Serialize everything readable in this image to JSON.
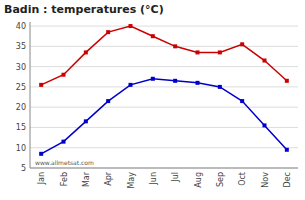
{
  "chart_data": {
    "type": "line",
    "title": "Badin : temperatures (°C)",
    "categories": [
      "Jan",
      "Feb",
      "Mar",
      "Apr",
      "May",
      "Jun",
      "Jul",
      "Aug",
      "Sep",
      "Oct",
      "Nov",
      "Dec"
    ],
    "series": [
      {
        "color": "#cc0000",
        "marker": "square",
        "line_style": "solid",
        "values": [
          25.5,
          28.0,
          33.5,
          38.5,
          40.0,
          37.5,
          35.0,
          33.5,
          33.5,
          35.5,
          31.5,
          26.5
        ]
      },
      {
        "color": "#0000cc",
        "marker": "square",
        "line_style": "solid",
        "values": [
          8.5,
          11.5,
          16.5,
          21.5,
          25.5,
          27.0,
          26.5,
          26.0,
          25.0,
          21.5,
          15.5,
          9.5
        ]
      }
    ],
    "ylim": [
      5,
      41
    ],
    "yticks": [
      5,
      10,
      15,
      20,
      25,
      30,
      35,
      40
    ],
    "grid": true,
    "annotations": [
      "www.allmetsat.com"
    ]
  }
}
